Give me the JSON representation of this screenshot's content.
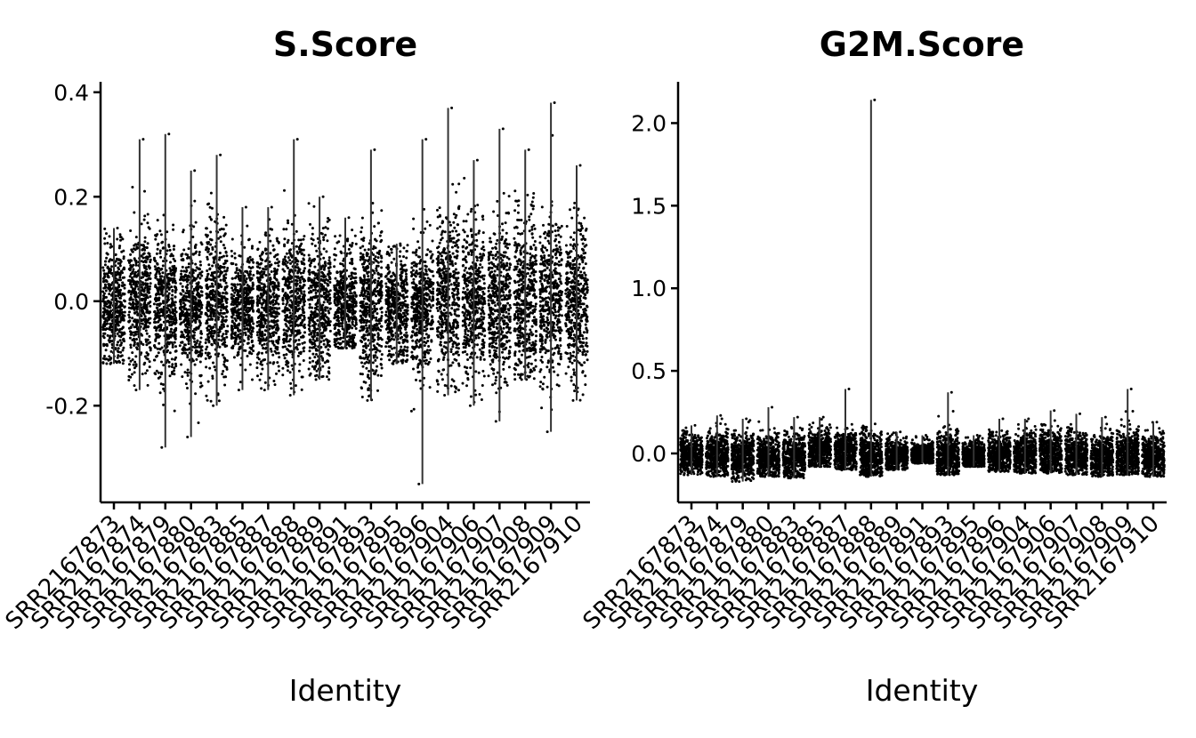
{
  "chart_data": [
    {
      "type": "scatter",
      "title": "S.Score",
      "xlabel": "Identity",
      "ylabel": "",
      "categories": [
        "SRR2167873",
        "SRR2167874",
        "SRR2167879",
        "SRR2167880",
        "SRR2167883",
        "SRR2167885",
        "SRR2167887",
        "SRR2167888",
        "SRR2167889",
        "SRR2167891",
        "SRR2167893",
        "SRR2167895",
        "SRR2167896",
        "SRR2167904",
        "SRR2167906",
        "SRR2167907",
        "SRR2167908",
        "SRR2167909",
        "SRR2167910"
      ],
      "ylim": [
        -0.38,
        0.42
      ],
      "yticks": [
        -0.2,
        0.0,
        0.2,
        0.4
      ],
      "ytick_labels": [
        "-0.2",
        "0.0",
        "0.2",
        "0.4"
      ],
      "summary": {
        "center": [
          -0.01,
          0.0,
          -0.01,
          -0.01,
          0.0,
          -0.01,
          -0.01,
          0.0,
          -0.01,
          -0.01,
          -0.01,
          -0.01,
          -0.01,
          0.01,
          0.0,
          0.0,
          0.0,
          0.0,
          0.0
        ],
        "q_low": [
          -0.05,
          -0.04,
          -0.05,
          -0.05,
          -0.05,
          -0.04,
          -0.05,
          -0.04,
          -0.05,
          -0.04,
          -0.06,
          -0.04,
          -0.04,
          -0.05,
          -0.05,
          -0.05,
          -0.05,
          -0.05,
          -0.05
        ],
        "q_high": [
          0.03,
          0.05,
          0.04,
          0.03,
          0.05,
          0.03,
          0.03,
          0.05,
          0.04,
          0.03,
          0.04,
          0.03,
          0.04,
          0.06,
          0.05,
          0.05,
          0.06,
          0.05,
          0.05
        ],
        "min": [
          -0.12,
          -0.17,
          -0.28,
          -0.26,
          -0.2,
          -0.17,
          -0.17,
          -0.18,
          -0.15,
          -0.09,
          -0.19,
          -0.12,
          -0.35,
          -0.18,
          -0.2,
          -0.23,
          -0.15,
          -0.25,
          -0.19
        ],
        "max": [
          0.14,
          0.31,
          0.32,
          0.25,
          0.28,
          0.18,
          0.18,
          0.31,
          0.2,
          0.16,
          0.29,
          0.11,
          0.31,
          0.37,
          0.27,
          0.33,
          0.29,
          0.38,
          0.26
        ]
      },
      "point_color": "#000000"
    },
    {
      "type": "scatter",
      "title": "G2M.Score",
      "xlabel": "Identity",
      "ylabel": "",
      "categories": [
        "SRR2167873",
        "SRR2167874",
        "SRR2167879",
        "SRR2167880",
        "SRR2167883",
        "SRR2167885",
        "SRR2167887",
        "SRR2167888",
        "SRR2167889",
        "SRR2167891",
        "SRR2167893",
        "SRR2167895",
        "SRR2167896",
        "SRR2167904",
        "SRR2167906",
        "SRR2167907",
        "SRR2167908",
        "SRR2167909",
        "SRR2167910"
      ],
      "ylim": [
        -0.28,
        2.25
      ],
      "yticks": [
        0.0,
        0.5,
        1.0,
        1.5,
        2.0
      ],
      "ytick_labels": [
        "0.0",
        "0.5",
        "1.0",
        "1.5",
        "2.0"
      ],
      "summary": {
        "center": [
          -0.01,
          -0.01,
          -0.02,
          -0.02,
          -0.02,
          0.02,
          0.01,
          -0.02,
          -0.01,
          -0.01,
          -0.01,
          -0.01,
          -0.01,
          -0.01,
          0.0,
          -0.01,
          -0.02,
          -0.01,
          -0.02
        ],
        "q_low": [
          -0.05,
          -0.06,
          -0.06,
          -0.06,
          -0.06,
          -0.02,
          -0.03,
          -0.06,
          -0.04,
          -0.03,
          -0.06,
          -0.04,
          -0.05,
          -0.05,
          -0.05,
          -0.05,
          -0.06,
          -0.05,
          -0.06
        ],
        "q_high": [
          0.03,
          0.04,
          0.03,
          0.03,
          0.03,
          0.06,
          0.05,
          0.04,
          0.03,
          0.02,
          0.04,
          0.02,
          0.03,
          0.04,
          0.05,
          0.04,
          0.03,
          0.05,
          0.03
        ],
        "min": [
          -0.13,
          -0.14,
          -0.17,
          -0.14,
          -0.15,
          -0.08,
          -0.1,
          -0.14,
          -0.1,
          -0.06,
          -0.13,
          -0.08,
          -0.11,
          -0.12,
          -0.12,
          -0.13,
          -0.14,
          -0.13,
          -0.14
        ],
        "max": [
          0.17,
          0.23,
          0.21,
          0.28,
          0.22,
          0.22,
          0.39,
          2.14,
          0.13,
          0.11,
          0.37,
          0.11,
          0.21,
          0.21,
          0.26,
          0.24,
          0.22,
          0.39,
          0.19
        ]
      },
      "point_color": "#000000"
    }
  ]
}
